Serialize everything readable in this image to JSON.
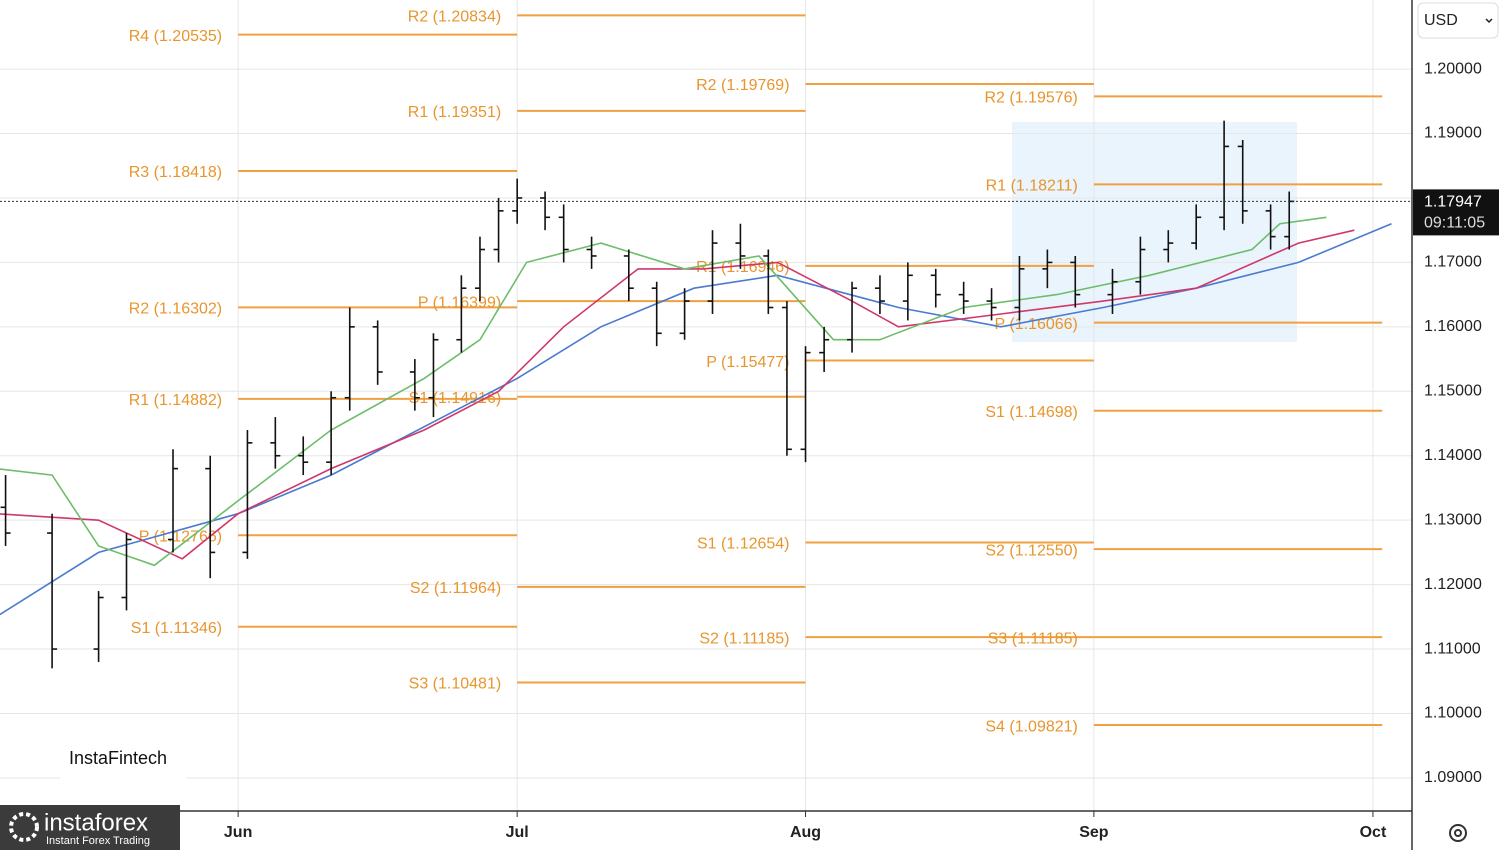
{
  "chart_data": {
    "type": "ohlc",
    "currency": "USD",
    "brand": "InstaFintech",
    "logo": {
      "name": "instaforex",
      "tagline": "Instant Forex Trading"
    },
    "xlim": [
      126.4,
      278.2
    ],
    "xticks": [
      {
        "value": 152,
        "label": "Jun"
      },
      {
        "value": 182,
        "label": "Jul"
      },
      {
        "value": 213,
        "label": "Aug"
      },
      {
        "value": 244,
        "label": "Sep"
      },
      {
        "value": 274,
        "label": "Oct"
      }
    ],
    "ylim": [
      1.08487,
      1.21072
    ],
    "yticks": [
      {
        "value": 1.2,
        "label": "1.20000"
      },
      {
        "value": 1.19,
        "label": "1.19000"
      },
      {
        "value": 1.18,
        "label": "1.18000"
      },
      {
        "value": 1.17,
        "label": "1.17000"
      },
      {
        "value": 1.16,
        "label": "1.16000"
      },
      {
        "value": 1.15,
        "label": "1.15000"
      },
      {
        "value": 1.14,
        "label": "1.14000"
      },
      {
        "value": 1.13,
        "label": "1.13000"
      },
      {
        "value": 1.12,
        "label": "1.12000"
      },
      {
        "value": 1.11,
        "label": "1.11000"
      },
      {
        "value": 1.1,
        "label": "1.10000"
      },
      {
        "value": 1.09,
        "label": "1.09000"
      }
    ],
    "grid": true,
    "last": {
      "value": 1.17947,
      "time": "09:11:05"
    },
    "bars": {
      "x": [
        127,
        132,
        137,
        140,
        145,
        149,
        153,
        156,
        159,
        162,
        164,
        167,
        171,
        173,
        176,
        178,
        180,
        182,
        185,
        187,
        190,
        194,
        197,
        200,
        203,
        206,
        209,
        211,
        213,
        215,
        218,
        221,
        224,
        227,
        230,
        233,
        236,
        239,
        242,
        246,
        249,
        252,
        255,
        258,
        260,
        263,
        265
      ],
      "open": [
        1.132,
        1.128,
        1.11,
        1.118,
        1.127,
        1.138,
        1.125,
        1.142,
        1.14,
        1.139,
        1.149,
        1.16,
        1.153,
        1.149,
        1.158,
        1.166,
        1.172,
        1.178,
        1.18,
        1.177,
        1.172,
        1.171,
        1.166,
        1.159,
        1.164,
        1.173,
        1.171,
        1.163,
        1.141,
        1.156,
        1.158,
        1.166,
        1.164,
        1.168,
        1.165,
        1.164,
        1.163,
        1.169,
        1.17,
        1.165,
        1.167,
        1.172,
        1.173,
        1.177,
        1.188,
        1.178,
        1.174
      ],
      "high": [
        1.137,
        1.131,
        1.119,
        1.128,
        1.141,
        1.14,
        1.144,
        1.146,
        1.143,
        1.15,
        1.163,
        1.161,
        1.155,
        1.159,
        1.168,
        1.174,
        1.18,
        1.183,
        1.181,
        1.179,
        1.174,
        1.172,
        1.167,
        1.166,
        1.175,
        1.176,
        1.172,
        1.164,
        1.157,
        1.16,
        1.167,
        1.168,
        1.17,
        1.169,
        1.167,
        1.166,
        1.171,
        1.172,
        1.171,
        1.169,
        1.174,
        1.175,
        1.179,
        1.192,
        1.189,
        1.179,
        1.181
      ],
      "low": [
        1.126,
        1.107,
        1.108,
        1.116,
        1.125,
        1.121,
        1.124,
        1.138,
        1.137,
        1.137,
        1.147,
        1.151,
        1.147,
        1.146,
        1.156,
        1.164,
        1.17,
        1.176,
        1.175,
        1.17,
        1.169,
        1.164,
        1.157,
        1.158,
        1.162,
        1.169,
        1.162,
        1.14,
        1.139,
        1.153,
        1.156,
        1.162,
        1.161,
        1.163,
        1.162,
        1.161,
        1.161,
        1.166,
        1.163,
        1.162,
        1.165,
        1.17,
        1.172,
        1.175,
        1.176,
        1.172,
        1.172
      ],
      "close": [
        1.128,
        1.11,
        1.118,
        1.127,
        1.138,
        1.125,
        1.142,
        1.14,
        1.139,
        1.149,
        1.16,
        1.153,
        1.149,
        1.158,
        1.166,
        1.172,
        1.178,
        1.18,
        1.177,
        1.172,
        1.171,
        1.166,
        1.159,
        1.164,
        1.173,
        1.171,
        1.163,
        1.141,
        1.156,
        1.158,
        1.166,
        1.164,
        1.168,
        1.165,
        1.164,
        1.163,
        1.169,
        1.17,
        1.165,
        1.167,
        1.172,
        1.173,
        1.177,
        1.188,
        1.178,
        1.174,
        1.17947
      ]
    },
    "series": [
      {
        "color": "#4a7bd0",
        "x": [
          126,
          137,
          152,
          162,
          174,
          182,
          191,
          201,
          210,
          223,
          234,
          245,
          255,
          266,
          276
        ],
        "values": [
          1.115,
          1.125,
          1.131,
          1.137,
          1.146,
          1.152,
          1.16,
          1.166,
          1.168,
          1.163,
          1.16,
          1.163,
          1.166,
          1.17,
          1.176
        ]
      },
      {
        "color": "#d0386a",
        "x": [
          126,
          137,
          146,
          152,
          162,
          172,
          180,
          187,
          195,
          202,
          210,
          218,
          223,
          234,
          245,
          255,
          266,
          272
        ],
        "values": [
          1.131,
          1.13,
          1.124,
          1.131,
          1.138,
          1.144,
          1.15,
          1.16,
          1.169,
          1.169,
          1.17,
          1.164,
          1.16,
          1.162,
          1.164,
          1.166,
          1.173,
          1.175
        ]
      },
      {
        "color": "#6dbd6a",
        "x": [
          126,
          132,
          137,
          143,
          152,
          162,
          172,
          178,
          183,
          191,
          200,
          208,
          216,
          221,
          230,
          240,
          250,
          261,
          264,
          269
        ],
        "values": [
          1.138,
          1.137,
          1.126,
          1.123,
          1.133,
          1.144,
          1.152,
          1.158,
          1.17,
          1.173,
          1.169,
          1.171,
          1.158,
          1.158,
          1.163,
          1.165,
          1.168,
          1.172,
          1.176,
          1.177
        ]
      }
    ],
    "pivots": [
      {
        "start": 152,
        "end": 182,
        "levels": [
          {
            "label": "R4 (1.20535)",
            "value": 1.20535
          },
          {
            "label": "R3 (1.18418)",
            "value": 1.18418
          },
          {
            "label": "R2 (1.16302)",
            "value": 1.16302
          },
          {
            "label": "R1 (1.14882)",
            "value": 1.14882
          },
          {
            "label": "P (1.12766)",
            "value": 1.12766
          },
          {
            "label": "S1 (1.11346)",
            "value": 1.11346
          }
        ]
      },
      {
        "start": 182,
        "end": 213,
        "levels": [
          {
            "label": "R2 (1.20834)",
            "value": 1.20834
          },
          {
            "label": "R1 (1.19351)",
            "value": 1.19351
          },
          {
            "label": "P (1.16399)",
            "value": 1.16399
          },
          {
            "label": "S1 (1.14916)",
            "value": 1.14916
          },
          {
            "label": "S2 (1.11964)",
            "value": 1.11964
          },
          {
            "label": "S3 (1.10481)",
            "value": 1.10481
          }
        ]
      },
      {
        "start": 213,
        "end": 244,
        "levels": [
          {
            "label": "R2 (1.19769)",
            "value": 1.19769
          },
          {
            "label": "R1 (1.16946)",
            "value": 1.16946
          },
          {
            "label": "P (1.15477)",
            "value": 1.15477
          },
          {
            "label": "S1 (1.12654)",
            "value": 1.12654
          },
          {
            "label": "S2 (1.11185)",
            "value": 1.11185
          }
        ]
      },
      {
        "start": 244,
        "end": 275,
        "levels": [
          {
            "label": "R2 (1.19576)",
            "value": 1.19576
          },
          {
            "label": "R1 (1.18211)",
            "value": 1.18211
          },
          {
            "label": "P (1.16066)",
            "value": 1.16066
          },
          {
            "label": "S1 (1.14698)",
            "value": 1.14698
          },
          {
            "label": "S2 (1.12550)",
            "value": 1.1255
          },
          {
            "label": "S3 (1.11185)",
            "value": 1.11185
          },
          {
            "label": "S4 (1.09821)",
            "value": 1.09821
          }
        ]
      }
    ]
  }
}
